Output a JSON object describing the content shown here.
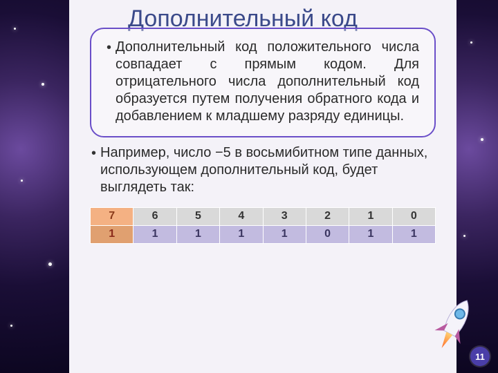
{
  "title": "Дополнительный код",
  "paragraph1": "Дополнительный код положительного числа совпадает с прямым кодом. Для отрицательного числа дополнительный код образуется путем получения обратного кода и добавлением к младшему разряду единицы.",
  "paragraph2": "Например, число −5 в восьмибитном типе данных, использующем дополнительный код, будет выглядеть так:",
  "table": {
    "header": [
      "7",
      "6",
      "5",
      "4",
      "3",
      "2",
      "1",
      "0"
    ],
    "row": [
      "1",
      "1",
      "1",
      "1",
      "1",
      "0",
      "1",
      "1"
    ],
    "header_bg_default": "#d9d9d9",
    "header_bg_first": "#f4b183",
    "header_text_first": "#8a3a1a",
    "row_bg_default": "#c2bbe0",
    "row_bg_first": "#e0a070",
    "row_text_first": "#8a2a1a",
    "row_text_default": "#3a3560"
  },
  "page_number": "11",
  "colors": {
    "title": "#3b4a8a",
    "box_border": "#6a4ec8",
    "slide_bg": "#f4f2f8"
  }
}
